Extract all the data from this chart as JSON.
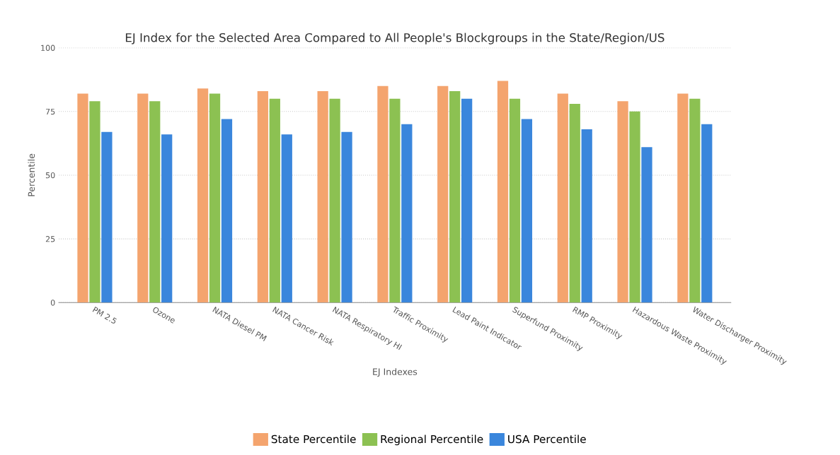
{
  "chart_data": {
    "type": "bar",
    "title": "EJ Index for the Selected Area Compared to All People's Blockgroups in the State/Region/US",
    "xlabel": "EJ Indexes",
    "ylabel": "Percentile",
    "categories": [
      "PM 2.5",
      "Ozone",
      "NATA Diesel PM",
      "NATA Cancer Risk",
      "NATA Respiratory HI",
      "Traffic Proximity",
      "Lead Paint Indicator",
      "Superfund Proximity",
      "RMP Proximity",
      "Hazardous Waste Proximity",
      "Water Discharger Proximity"
    ],
    "series": [
      {
        "name": "State Percentile",
        "color": "#f4a46e",
        "values": [
          82,
          82,
          84,
          83,
          83,
          85,
          85,
          87,
          82,
          79,
          82
        ]
      },
      {
        "name": "Regional Percentile",
        "color": "#8cc152",
        "values": [
          79,
          79,
          82,
          80,
          80,
          80,
          83,
          80,
          78,
          75,
          80
        ]
      },
      {
        "name": "USA Percentile",
        "color": "#3a86dc",
        "values": [
          67,
          66,
          72,
          66,
          67,
          70,
          80,
          72,
          68,
          61,
          70
        ]
      }
    ],
    "ylim": [
      0,
      100
    ],
    "yticks": [
      0,
      25,
      50,
      75,
      100
    ],
    "grid": "y",
    "legend": "bottom"
  }
}
